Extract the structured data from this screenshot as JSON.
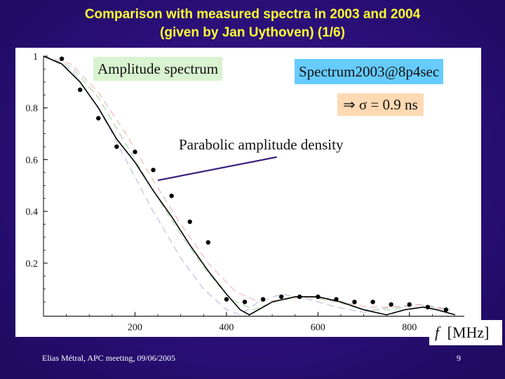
{
  "slide": {
    "title_line1": "Comparison with measured spectra in 2003 and 2004",
    "title_line2": "(given by Jan Uythoven) (1/6)",
    "footer": "Elias Métral, APC meeting, 09/06/2005",
    "page_number": "9"
  },
  "annotations": {
    "amplitude": "Amplitude spectrum",
    "spectrum": "Spectrum2003@8p4sec",
    "sigma": "⇒ σ = 0.9 ns",
    "parabolic": "Parabolic amplitude density",
    "freq_f": "f",
    "freq_unit": "[MHz]"
  },
  "colors": {
    "title": "#ffff33",
    "background": "#2a0f78",
    "amplitude_box": "#d9f2d0",
    "spectrum_box": "#66ccff",
    "sigma_box": "#ffd9b3",
    "arrow": "#3b1f7a"
  },
  "chart_data": {
    "type": "line",
    "xlim": [
      0,
      920
    ],
    "ylim": [
      -0.02,
      1.0
    ],
    "x_ticks": [
      200,
      400,
      600,
      800
    ],
    "x_tick_labels": [
      "200",
      "400",
      "600",
      "800"
    ],
    "y_ticks": [
      0.2,
      0.4,
      0.6,
      0.8,
      1.0
    ],
    "y_tick_labels": [
      "0.2",
      "0.4",
      "0.6",
      "0.8",
      "1"
    ],
    "grid": false,
    "series": [
      {
        "style": "solid",
        "color": "#000000",
        "x": [
          0,
          40,
          80,
          120,
          160,
          200,
          240,
          280,
          320,
          360,
          400,
          430,
          450,
          470,
          500,
          550,
          600,
          650,
          700,
          750,
          790,
          830,
          860,
          900
        ],
        "y": [
          1.0,
          0.97,
          0.9,
          0.8,
          0.68,
          0.59,
          0.48,
          0.38,
          0.27,
          0.17,
          0.08,
          0.02,
          0.0,
          0.02,
          0.05,
          0.07,
          0.07,
          0.05,
          0.02,
          0.0,
          0.02,
          0.03,
          0.02,
          0.0
        ]
      },
      {
        "style": "dashed",
        "color": "#c0c0e0",
        "x": [
          0,
          60,
          120,
          180,
          240,
          300,
          350,
          400,
          430,
          470,
          520,
          580,
          640,
          700,
          760,
          820,
          880
        ],
        "y": [
          1.0,
          0.95,
          0.8,
          0.6,
          0.4,
          0.22,
          0.1,
          0.02,
          0.0,
          0.05,
          0.08,
          0.06,
          0.03,
          0.01,
          0.03,
          0.04,
          0.02
        ]
      },
      {
        "style": "dashed",
        "color": "#a8d8a8",
        "x": [
          0,
          60,
          120,
          180,
          240,
          300,
          360,
          410,
          460,
          520,
          580,
          640,
          700,
          760,
          820,
          880
        ],
        "y": [
          1.0,
          0.96,
          0.84,
          0.66,
          0.48,
          0.31,
          0.16,
          0.06,
          0.02,
          0.06,
          0.07,
          0.05,
          0.02,
          0.02,
          0.04,
          0.02
        ]
      },
      {
        "style": "dashed",
        "color": "#f0b8b8",
        "x": [
          0,
          60,
          120,
          180,
          240,
          300,
          360,
          420,
          470,
          530,
          590,
          650,
          710,
          770,
          830,
          890
        ],
        "y": [
          1.0,
          0.97,
          0.86,
          0.7,
          0.52,
          0.35,
          0.2,
          0.09,
          0.05,
          0.06,
          0.07,
          0.05,
          0.03,
          0.03,
          0.04,
          0.02
        ]
      }
    ],
    "points": {
      "x": [
        40,
        80,
        120,
        160,
        200,
        240,
        280,
        320,
        360,
        400,
        440,
        480,
        520,
        560,
        600,
        640,
        680,
        720,
        760,
        800,
        840,
        880
      ],
      "y": [
        0.99,
        0.87,
        0.76,
        0.65,
        0.63,
        0.56,
        0.46,
        0.36,
        0.28,
        0.06,
        0.05,
        0.06,
        0.07,
        0.07,
        0.07,
        0.06,
        0.05,
        0.05,
        0.04,
        0.04,
        0.03,
        0.02
      ]
    },
    "arrow": {
      "from": [
        510,
        0.61
      ],
      "to": [
        250,
        0.52
      ]
    }
  }
}
